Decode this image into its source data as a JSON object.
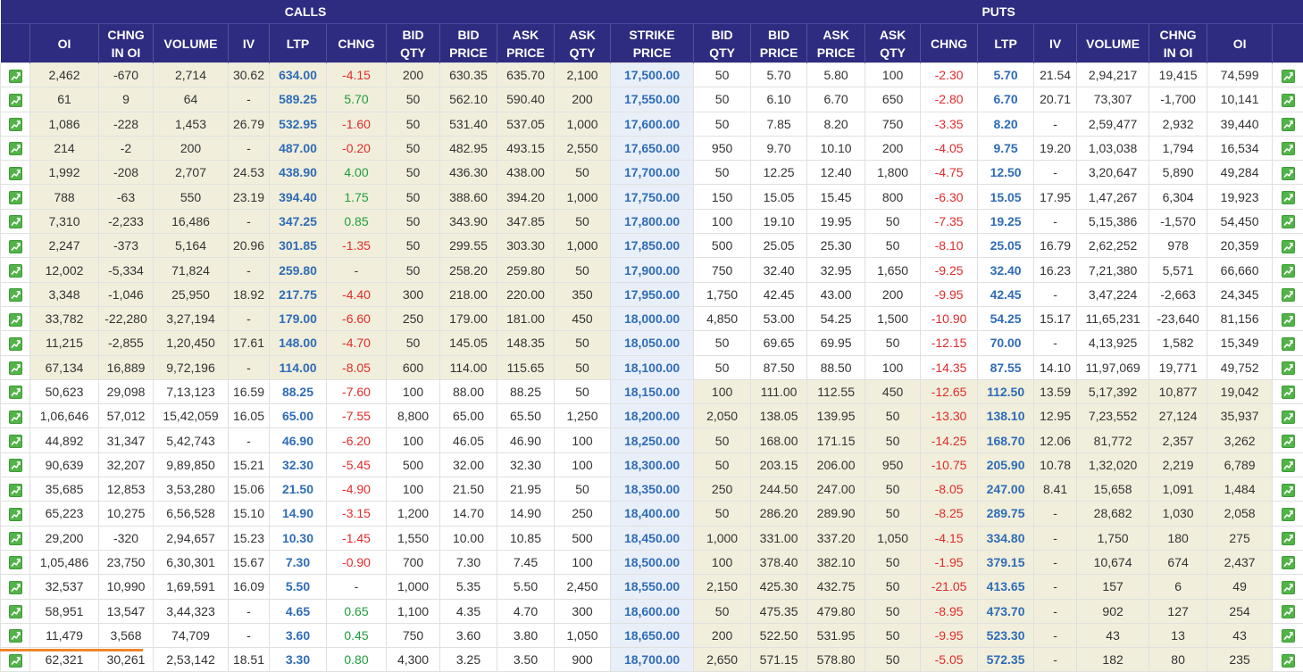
{
  "header": {
    "calls": "CALLS",
    "puts": "PUTS"
  },
  "columns": {
    "call": [
      [
        "OI"
      ],
      [
        "CHNG",
        "IN OI"
      ],
      [
        "VOLUME"
      ],
      [
        "IV"
      ],
      [
        "LTP"
      ],
      [
        "CHNG"
      ],
      [
        "BID",
        "QTY"
      ],
      [
        "BID",
        "PRICE"
      ],
      [
        "ASK",
        "PRICE"
      ],
      [
        "ASK",
        "QTY"
      ]
    ],
    "strike": [
      "STRIKE",
      "PRICE"
    ],
    "put": [
      [
        "BID",
        "QTY"
      ],
      [
        "BID",
        "PRICE"
      ],
      [
        "ASK",
        "PRICE"
      ],
      [
        "ASK",
        "QTY"
      ],
      [
        "CHNG"
      ],
      [
        "LTP"
      ],
      [
        "IV"
      ],
      [
        "VOLUME"
      ],
      [
        "CHNG",
        "IN OI"
      ],
      [
        "OI"
      ]
    ]
  },
  "icons": {
    "row_action": "chart-icon"
  },
  "colors": {
    "header_bg": "#2e2c80",
    "itm_bg": "#f1efdc",
    "strike_bg": "#e9eff9",
    "link": "#2f6cb7",
    "negative": "#e02b2b",
    "positive": "#1f9d3d",
    "icon_green": "#52b448",
    "accent": "#f0842c"
  },
  "rows": [
    {
      "call_itm": true,
      "put_itm": false,
      "call": [
        "2,462",
        "-670",
        "2,714",
        "30.62",
        "634.00",
        "-4.15",
        "200",
        "630.35",
        "635.70",
        "2,100"
      ],
      "strike": "17,500.00",
      "put": [
        "50",
        "5.70",
        "5.80",
        "100",
        "-2.30",
        "5.70",
        "21.54",
        "2,94,217",
        "19,415",
        "74,599"
      ]
    },
    {
      "call_itm": true,
      "put_itm": false,
      "call": [
        "61",
        "9",
        "64",
        "-",
        "589.25",
        "5.70",
        "50",
        "562.10",
        "590.40",
        "200"
      ],
      "strike": "17,550.00",
      "put": [
        "50",
        "6.10",
        "6.70",
        "650",
        "-2.80",
        "6.70",
        "20.71",
        "73,307",
        "-1,700",
        "10,141"
      ]
    },
    {
      "call_itm": true,
      "put_itm": false,
      "call": [
        "1,086",
        "-228",
        "1,453",
        "26.79",
        "532.95",
        "-1.60",
        "50",
        "531.40",
        "537.05",
        "1,000"
      ],
      "strike": "17,600.00",
      "put": [
        "50",
        "7.85",
        "8.20",
        "750",
        "-3.35",
        "8.20",
        "-",
        "2,59,477",
        "2,932",
        "39,440"
      ]
    },
    {
      "call_itm": true,
      "put_itm": false,
      "call": [
        "214",
        "-2",
        "200",
        "-",
        "487.00",
        "-0.20",
        "50",
        "482.95",
        "493.15",
        "2,550"
      ],
      "strike": "17,650.00",
      "put": [
        "950",
        "9.70",
        "10.10",
        "200",
        "-4.05",
        "9.75",
        "19.20",
        "1,03,038",
        "1,794",
        "16,534"
      ]
    },
    {
      "call_itm": true,
      "put_itm": false,
      "call": [
        "1,992",
        "-208",
        "2,707",
        "24.53",
        "438.90",
        "4.00",
        "50",
        "436.30",
        "438.00",
        "50"
      ],
      "strike": "17,700.00",
      "put": [
        "50",
        "12.25",
        "12.40",
        "1,800",
        "-4.75",
        "12.50",
        "-",
        "3,20,647",
        "5,890",
        "49,284"
      ]
    },
    {
      "call_itm": true,
      "put_itm": false,
      "call": [
        "788",
        "-63",
        "550",
        "23.19",
        "394.40",
        "1.75",
        "50",
        "388.60",
        "394.20",
        "1,000"
      ],
      "strike": "17,750.00",
      "put": [
        "150",
        "15.05",
        "15.45",
        "800",
        "-6.30",
        "15.05",
        "17.95",
        "1,47,267",
        "6,304",
        "19,923"
      ]
    },
    {
      "call_itm": true,
      "put_itm": false,
      "call": [
        "7,310",
        "-2,233",
        "16,486",
        "-",
        "347.25",
        "0.85",
        "50",
        "343.90",
        "347.85",
        "50"
      ],
      "strike": "17,800.00",
      "put": [
        "100",
        "19.10",
        "19.95",
        "50",
        "-7.35",
        "19.25",
        "-",
        "5,15,386",
        "-1,570",
        "54,450"
      ]
    },
    {
      "call_itm": true,
      "put_itm": false,
      "call": [
        "2,247",
        "-373",
        "5,164",
        "20.96",
        "301.85",
        "-1.35",
        "50",
        "299.55",
        "303.30",
        "1,000"
      ],
      "strike": "17,850.00",
      "put": [
        "500",
        "25.05",
        "25.30",
        "50",
        "-8.10",
        "25.05",
        "16.79",
        "2,62,252",
        "978",
        "20,359"
      ]
    },
    {
      "call_itm": true,
      "put_itm": false,
      "call": [
        "12,002",
        "-5,334",
        "71,824",
        "-",
        "259.80",
        "-",
        "50",
        "258.20",
        "259.80",
        "50"
      ],
      "strike": "17,900.00",
      "put": [
        "750",
        "32.40",
        "32.95",
        "1,650",
        "-9.25",
        "32.40",
        "16.23",
        "7,21,380",
        "5,571",
        "66,660"
      ]
    },
    {
      "call_itm": true,
      "put_itm": false,
      "call": [
        "3,348",
        "-1,046",
        "25,950",
        "18.92",
        "217.75",
        "-4.40",
        "300",
        "218.00",
        "220.00",
        "350"
      ],
      "strike": "17,950.00",
      "put": [
        "1,750",
        "42.45",
        "43.00",
        "200",
        "-9.95",
        "42.45",
        "-",
        "3,47,224",
        "-2,663",
        "24,345"
      ]
    },
    {
      "call_itm": true,
      "put_itm": false,
      "call": [
        "33,782",
        "-22,280",
        "3,27,194",
        "-",
        "179.00",
        "-6.60",
        "250",
        "179.00",
        "181.00",
        "450"
      ],
      "strike": "18,000.00",
      "put": [
        "4,850",
        "53.00",
        "54.25",
        "1,500",
        "-10.90",
        "54.25",
        "15.17",
        "11,65,231",
        "-23,640",
        "81,156"
      ]
    },
    {
      "call_itm": true,
      "put_itm": false,
      "call": [
        "11,215",
        "-2,855",
        "1,20,450",
        "17.61",
        "148.00",
        "-4.70",
        "50",
        "145.05",
        "148.35",
        "50"
      ],
      "strike": "18,050.00",
      "put": [
        "50",
        "69.65",
        "69.95",
        "50",
        "-12.15",
        "70.00",
        "-",
        "4,13,925",
        "1,582",
        "15,349"
      ]
    },
    {
      "call_itm": true,
      "put_itm": false,
      "call": [
        "67,134",
        "16,889",
        "9,72,196",
        "-",
        "114.00",
        "-8.05",
        "600",
        "114.00",
        "115.65",
        "50"
      ],
      "strike": "18,100.00",
      "put": [
        "50",
        "87.50",
        "88.50",
        "100",
        "-14.35",
        "87.55",
        "14.10",
        "11,97,069",
        "19,771",
        "49,752"
      ]
    },
    {
      "call_itm": false,
      "put_itm": true,
      "call": [
        "50,623",
        "29,098",
        "7,13,123",
        "16.59",
        "88.25",
        "-7.60",
        "100",
        "88.00",
        "88.25",
        "50"
      ],
      "strike": "18,150.00",
      "put": [
        "100",
        "111.00",
        "112.55",
        "450",
        "-12.65",
        "112.50",
        "13.59",
        "5,17,392",
        "10,877",
        "19,042"
      ]
    },
    {
      "call_itm": false,
      "put_itm": true,
      "call": [
        "1,06,646",
        "57,012",
        "15,42,059",
        "16.05",
        "65.00",
        "-7.55",
        "8,800",
        "65.00",
        "65.50",
        "1,250"
      ],
      "strike": "18,200.00",
      "put": [
        "2,050",
        "138.05",
        "139.95",
        "50",
        "-13.30",
        "138.10",
        "12.95",
        "7,23,552",
        "27,124",
        "35,937"
      ]
    },
    {
      "call_itm": false,
      "put_itm": true,
      "call": [
        "44,892",
        "31,347",
        "5,42,743",
        "-",
        "46.90",
        "-6.20",
        "100",
        "46.05",
        "46.90",
        "100"
      ],
      "strike": "18,250.00",
      "put": [
        "50",
        "168.00",
        "171.15",
        "50",
        "-14.25",
        "168.70",
        "12.06",
        "81,772",
        "2,357",
        "3,262"
      ]
    },
    {
      "call_itm": false,
      "put_itm": true,
      "call": [
        "90,639",
        "32,207",
        "9,89,850",
        "15.21",
        "32.30",
        "-5.45",
        "500",
        "32.00",
        "32.30",
        "100"
      ],
      "strike": "18,300.00",
      "put": [
        "50",
        "203.15",
        "206.00",
        "950",
        "-10.75",
        "205.90",
        "10.78",
        "1,32,020",
        "2,219",
        "6,789"
      ]
    },
    {
      "call_itm": false,
      "put_itm": true,
      "call": [
        "35,685",
        "12,853",
        "3,53,280",
        "15.06",
        "21.50",
        "-4.90",
        "100",
        "21.50",
        "21.95",
        "50"
      ],
      "strike": "18,350.00",
      "put": [
        "250",
        "244.50",
        "247.00",
        "50",
        "-8.05",
        "247.00",
        "8.41",
        "15,658",
        "1,091",
        "1,484"
      ]
    },
    {
      "call_itm": false,
      "put_itm": true,
      "call": [
        "65,223",
        "10,275",
        "6,56,528",
        "15.10",
        "14.90",
        "-3.15",
        "1,200",
        "14.70",
        "14.90",
        "250"
      ],
      "strike": "18,400.00",
      "put": [
        "50",
        "286.20",
        "289.90",
        "50",
        "-8.25",
        "289.75",
        "-",
        "28,682",
        "1,030",
        "2,058"
      ]
    },
    {
      "call_itm": false,
      "put_itm": true,
      "call": [
        "29,200",
        "-320",
        "2,94,657",
        "15.23",
        "10.30",
        "-1.45",
        "1,550",
        "10.00",
        "10.85",
        "500"
      ],
      "strike": "18,450.00",
      "put": [
        "1,000",
        "331.00",
        "337.20",
        "1,050",
        "-4.15",
        "334.80",
        "-",
        "1,750",
        "180",
        "275"
      ]
    },
    {
      "call_itm": false,
      "put_itm": true,
      "call": [
        "1,05,486",
        "23,750",
        "6,30,301",
        "15.67",
        "7.30",
        "-0.90",
        "700",
        "7.30",
        "7.45",
        "100"
      ],
      "strike": "18,500.00",
      "put": [
        "100",
        "378.40",
        "382.10",
        "50",
        "-1.95",
        "379.15",
        "-",
        "10,674",
        "674",
        "2,437"
      ]
    },
    {
      "call_itm": false,
      "put_itm": true,
      "call": [
        "32,537",
        "10,990",
        "1,69,591",
        "16.09",
        "5.50",
        "-",
        "1,000",
        "5.35",
        "5.50",
        "2,450"
      ],
      "strike": "18,550.00",
      "put": [
        "2,150",
        "425.30",
        "432.75",
        "50",
        "-21.05",
        "413.65",
        "-",
        "157",
        "6",
        "49"
      ]
    },
    {
      "call_itm": false,
      "put_itm": true,
      "call": [
        "58,951",
        "13,547",
        "3,44,323",
        "-",
        "4.65",
        "0.65",
        "1,100",
        "4.35",
        "4.70",
        "300"
      ],
      "strike": "18,600.00",
      "put": [
        "50",
        "475.35",
        "479.80",
        "50",
        "-8.95",
        "473.70",
        "-",
        "902",
        "127",
        "254"
      ]
    },
    {
      "call_itm": false,
      "put_itm": true,
      "call": [
        "11,479",
        "3,568",
        "74,709",
        "-",
        "3.60",
        "0.45",
        "750",
        "3.60",
        "3.80",
        "1,050"
      ],
      "strike": "18,650.00",
      "put": [
        "200",
        "522.50",
        "531.95",
        "50",
        "-9.95",
        "523.30",
        "-",
        "43",
        "13",
        "43"
      ]
    },
    {
      "call_itm": false,
      "put_itm": true,
      "call": [
        "62,321",
        "30,261",
        "2,53,142",
        "18.51",
        "3.30",
        "0.80",
        "4,300",
        "3.25",
        "3.50",
        "900"
      ],
      "strike": "18,700.00",
      "put": [
        "2,650",
        "571.15",
        "578.80",
        "50",
        "-5.05",
        "572.35",
        "-",
        "182",
        "80",
        "235"
      ]
    }
  ]
}
